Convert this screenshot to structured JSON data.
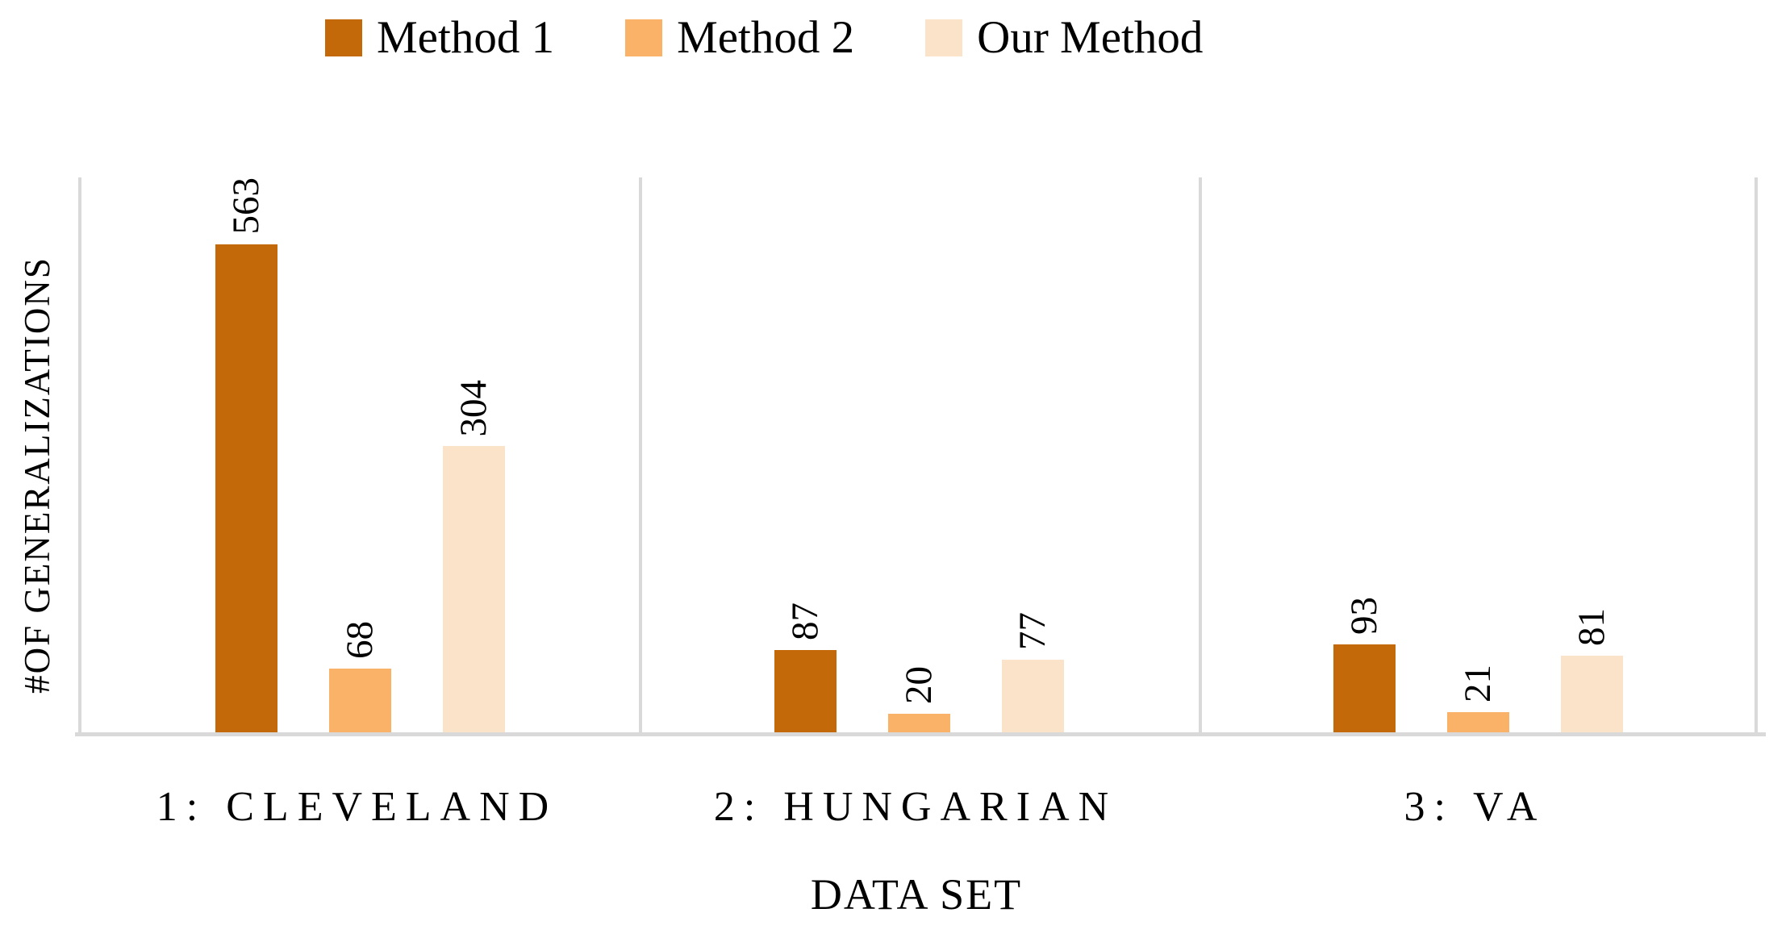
{
  "chart_data": {
    "type": "bar",
    "title": "",
    "categories": [
      "1: CLEVELAND",
      "2: HUNGARIAN",
      "3: VA"
    ],
    "series": [
      {
        "name": "Method 1",
        "color": "#C4690A",
        "values": [
          563,
          87,
          93
        ]
      },
      {
        "name": "Method 2",
        "color": "#F9B268",
        "values": [
          68,
          20,
          21
        ]
      },
      {
        "name": "Our Method",
        "color": "#FBE3CA",
        "values": [
          304,
          77,
          81
        ]
      }
    ],
    "xlabel": "DATA SET",
    "ylabel": "#OF GENERALIZATIONS",
    "ylim": [
      0,
      590
    ],
    "y_ticks_visible": false,
    "data_labels": "rotated 90deg above bars",
    "legend_position": "top",
    "axis_color": "#D9D9D9",
    "grid": "vertical group separators only"
  }
}
